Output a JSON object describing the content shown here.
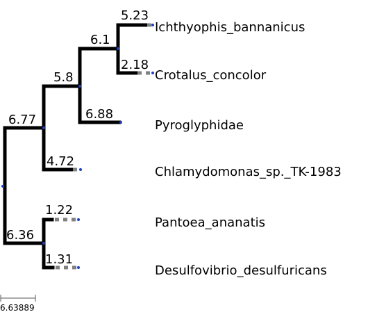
{
  "tree": {
    "leaves": [
      {
        "name": "Ichthyophis_bannanicus",
        "branch_length": "5.23"
      },
      {
        "name": "Crotalus_concolor",
        "branch_length": "2.18"
      },
      {
        "name": "Pyroglyphidae",
        "branch_length": "6.88"
      },
      {
        "name": "Chlamydomonas_sp._TK-1983",
        "branch_length": "4.72"
      },
      {
        "name": "Pantoea_ananatis",
        "branch_length": "1.22"
      },
      {
        "name": "Desulfovibrio_desulfuricans",
        "branch_length": "1.31"
      }
    ],
    "internal": [
      {
        "id": "n1",
        "branch_length": "6.1"
      },
      {
        "id": "n2",
        "branch_length": "5.8"
      },
      {
        "id": "n3",
        "branch_length": "6.77"
      },
      {
        "id": "n4",
        "branch_length": "6.36"
      }
    ],
    "scale_bar": {
      "label": "6.63889"
    },
    "colors": {
      "branch": "#000000",
      "dashed_extension": "#808080",
      "node_dot": "#1f3fbf"
    }
  }
}
